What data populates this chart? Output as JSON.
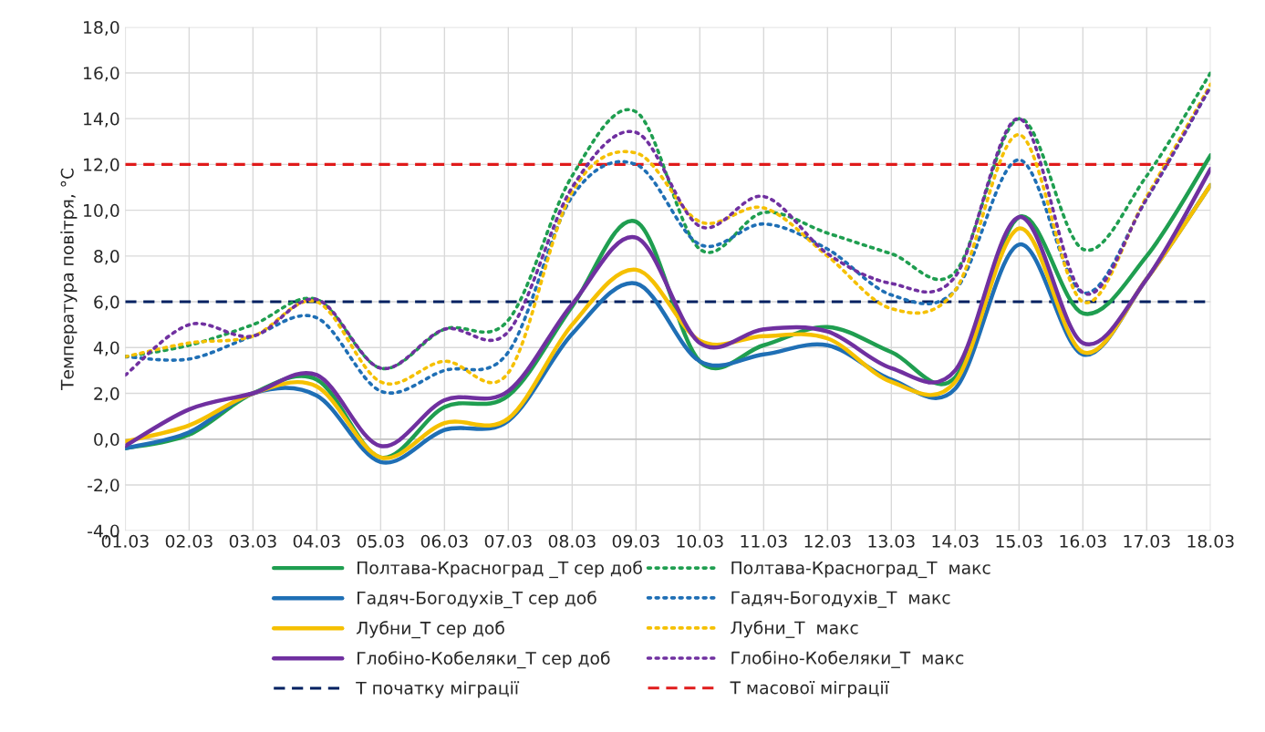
{
  "chart_data": {
    "type": "line",
    "ylabel": "Температура повітря, °C",
    "categories": [
      "01.03",
      "02.03",
      "03.03",
      "04.03",
      "05.03",
      "06.03",
      "07.03",
      "08.03",
      "09.03",
      "10.03",
      "11.03",
      "12.03",
      "13.03",
      "14.03",
      "15.03",
      "16.03",
      "17.03",
      "18.03"
    ],
    "series": [
      {
        "name": "Полтава-Красноград _Т сер доб",
        "color": "#1f9e50",
        "line_style": "solid",
        "values": [
          -0.4,
          0.2,
          2.0,
          2.6,
          -0.8,
          1.4,
          1.9,
          5.8,
          9.5,
          3.4,
          4.1,
          4.9,
          3.8,
          2.7,
          9.7,
          5.5,
          8.0,
          12.4
        ]
      },
      {
        "name": "Полтава-Красноград_Т  макс",
        "color": "#1f9e50",
        "line_style": "dotted",
        "values": [
          3.6,
          4.1,
          5.0,
          6.1,
          3.1,
          4.8,
          5.2,
          11.5,
          14.3,
          8.3,
          9.9,
          9.0,
          8.1,
          7.3,
          14.0,
          8.3,
          11.5,
          16.0
        ]
      },
      {
        "name": "Гадяч-Богодухів_Т сер доб",
        "color": "#1f6fb5",
        "line_style": "solid",
        "values": [
          -0.4,
          0.3,
          2.0,
          1.9,
          -1.0,
          0.4,
          0.8,
          4.6,
          6.8,
          3.4,
          3.7,
          4.1,
          2.6,
          2.2,
          8.5,
          3.7,
          7.0,
          11.1
        ]
      },
      {
        "name": "Гадяч-Богодухів_Т  макс",
        "color": "#1f6fb5",
        "line_style": "dotted",
        "values": [
          3.6,
          3.5,
          4.5,
          5.3,
          2.1,
          3.0,
          3.8,
          10.6,
          12.0,
          8.5,
          9.4,
          8.3,
          6.3,
          6.5,
          12.2,
          6.4,
          10.5,
          15.4
        ]
      },
      {
        "name": "Лубни_Т сер доб",
        "color": "#f5c000",
        "line_style": "solid",
        "values": [
          -0.1,
          0.6,
          2.0,
          2.3,
          -0.8,
          0.7,
          0.9,
          5.0,
          7.4,
          4.3,
          4.5,
          4.4,
          2.5,
          2.5,
          9.2,
          3.8,
          7.0,
          11.1
        ]
      },
      {
        "name": "Лубни_Т  макс",
        "color": "#f5c000",
        "line_style": "dotted",
        "values": [
          3.6,
          4.2,
          4.5,
          6.0,
          2.5,
          3.4,
          2.9,
          10.8,
          12.5,
          9.5,
          10.1,
          8.0,
          5.7,
          6.5,
          13.3,
          6.0,
          10.6,
          15.5
        ]
      },
      {
        "name": "Глобіно-Кобеляки_Т сер доб",
        "color": "#7030a0",
        "line_style": "solid",
        "values": [
          -0.3,
          1.3,
          2.0,
          2.8,
          -0.3,
          1.7,
          2.1,
          5.9,
          8.8,
          4.2,
          4.8,
          4.7,
          3.1,
          3.0,
          9.7,
          4.2,
          7.0,
          11.8
        ]
      },
      {
        "name": "Глобіно-Кобеляки_Т  макс",
        "color": "#7030a0",
        "line_style": "dotted",
        "values": [
          2.8,
          5.0,
          4.5,
          6.1,
          3.1,
          4.8,
          4.7,
          11.0,
          13.4,
          9.3,
          10.6,
          8.1,
          6.8,
          7.1,
          14.0,
          6.4,
          10.5,
          15.4
        ]
      }
    ],
    "ref_lines": [
      {
        "axis": "y",
        "value": 6.0,
        "label": "Т початку міграції",
        "color": "#002060",
        "line_style": "dashed"
      },
      {
        "axis": "y",
        "value": 12.0,
        "label": "Т масової міграції",
        "color": "#e01b1b",
        "line_style": "dashed"
      }
    ],
    "ylim": [
      -4.0,
      18.0
    ],
    "yticks": [
      {
        "value": -4.0,
        "label": "-4,0"
      },
      {
        "value": -2.0,
        "label": "-2,0"
      },
      {
        "value": 0.0,
        "label": "0,0"
      },
      {
        "value": 2.0,
        "label": "2,0"
      },
      {
        "value": 4.0,
        "label": "4,0"
      },
      {
        "value": 6.0,
        "label": "6,0"
      },
      {
        "value": 8.0,
        "label": "8,0"
      },
      {
        "value": 10.0,
        "label": "10,0"
      },
      {
        "value": 12.0,
        "label": "12,0"
      },
      {
        "value": 14.0,
        "label": "14,0"
      },
      {
        "value": 16.0,
        "label": "16,0"
      },
      {
        "value": 18.0,
        "label": "18,0"
      }
    ],
    "grid": true,
    "legend": "bottom"
  }
}
